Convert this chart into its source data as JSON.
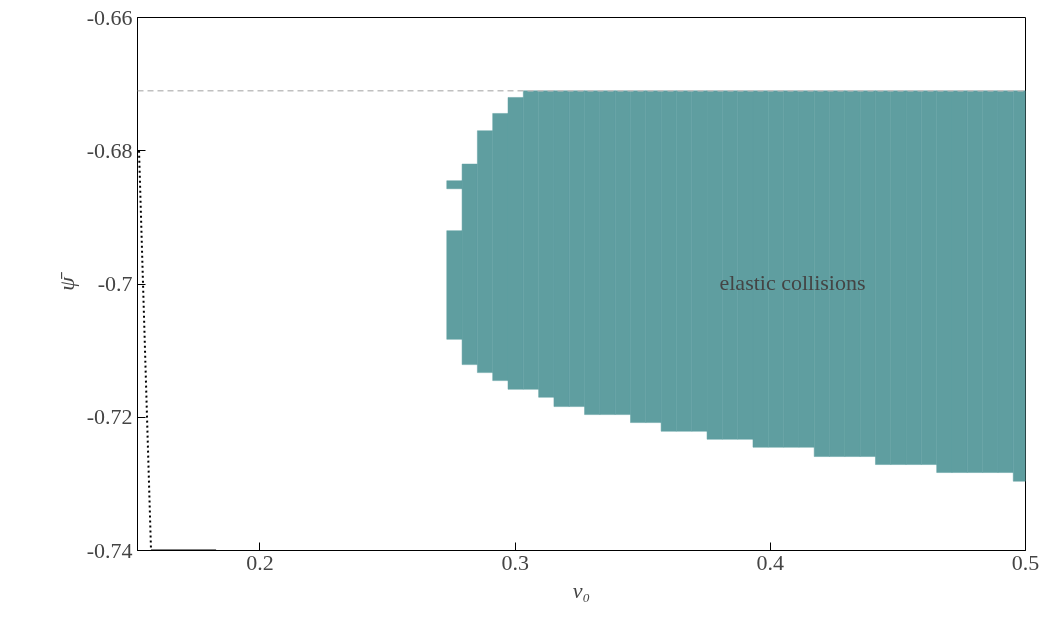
{
  "chart_data": {
    "type": "bar",
    "xlabel": "v₀",
    "ylabel": "ψ̄",
    "xlim": [
      0.152,
      0.5
    ],
    "ylim": [
      -0.74,
      -0.66
    ],
    "xticks": [
      0.2,
      0.3,
      0.4,
      0.5
    ],
    "yticks": [
      -0.74,
      -0.72,
      -0.7,
      -0.68,
      -0.66
    ],
    "grid": false,
    "series": [
      {
        "color": "#5f9ea0",
        "x": [
          0.2762,
          0.2822,
          0.2882,
          0.2942,
          0.3002,
          0.3062,
          0.3122,
          0.3182,
          0.3242,
          0.3302,
          0.3362,
          0.3422,
          0.3482,
          0.3542,
          0.3602,
          0.3662,
          0.3722,
          0.3782,
          0.3842,
          0.3902,
          0.3962,
          0.4022,
          0.4082,
          0.4142,
          0.4202,
          0.4262,
          0.4322,
          0.4382,
          0.4442,
          0.4502,
          0.4562,
          0.4622,
          0.4682,
          0.4742,
          0.4802,
          0.4862,
          0.4922,
          0.4982
        ],
        "base": [
          -0.7083,
          -0.7121,
          -0.7133,
          -0.7145,
          -0.7158,
          -0.7158,
          -0.717,
          -0.7184,
          -0.7184,
          -0.7196,
          -0.7196,
          -0.7196,
          -0.7208,
          -0.7208,
          -0.7221,
          -0.7221,
          -0.7221,
          -0.7233,
          -0.7233,
          -0.7233,
          -0.7245,
          -0.7245,
          -0.7245,
          -0.7245,
          -0.7259,
          -0.7259,
          -0.7259,
          -0.7259,
          -0.7271,
          -0.7271,
          -0.7271,
          -0.7271,
          -0.7283,
          -0.7283,
          -0.7283,
          -0.7283,
          -0.7283,
          -0.7296
        ],
        "values": [
          0.0163,
          0.0301,
          0.0363,
          0.0401,
          0.0438,
          0.0448,
          0.046,
          0.0474,
          0.0474,
          0.0486,
          0.0486,
          0.0486,
          0.0498,
          0.0498,
          0.0511,
          0.0511,
          0.0511,
          0.0523,
          0.0523,
          0.0523,
          0.0535,
          0.0535,
          0.0535,
          0.0535,
          0.0549,
          0.0549,
          0.0549,
          0.0549,
          0.0561,
          0.0561,
          0.0561,
          0.0561,
          0.0573,
          0.0573,
          0.0573,
          0.0573,
          0.0573,
          0.0586
        ]
      },
      {
        "color": "#5f9ea0",
        "x": [
          0.2762
        ],
        "base": [
          -0.6857
        ],
        "values": [
          0.0012
        ]
      },
      {
        "type": "line",
        "color": "#000000",
        "line_style": "dotted",
        "x": [
          0.1526,
          0.1573
        ],
        "values": [
          -0.68,
          -0.74
        ]
      },
      {
        "type": "line",
        "color": "#000000",
        "line_style": "solid",
        "x": [
          0.1573,
          0.1828
        ],
        "values": [
          -0.74,
          -0.74
        ]
      }
    ],
    "ref_lines": [
      {
        "axis": "y",
        "value": -0.671,
        "color": "#c0c0c0",
        "line_style": "dashed"
      }
    ],
    "annotations": [
      "elastic collisions"
    ]
  }
}
